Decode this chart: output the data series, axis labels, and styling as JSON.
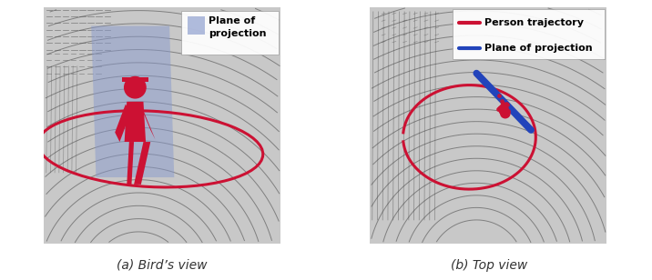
{
  "fig_width": 7.16,
  "fig_height": 3.08,
  "dpi": 100,
  "bg_color": "#c8c8c8",
  "caption_text": "(a) Bird’s view",
  "caption_text_b": "(b) Top view",
  "caption_fontsize": 10,
  "legend_b1_text": "Person trajectory",
  "legend_b2_text": "Plane of projection",
  "red_color": "#cc1133",
  "blue_color": "#2244bb",
  "plane_fill": "#8899cc",
  "plane_alpha": 0.5,
  "line_color": "#444444",
  "line_alpha": 0.55,
  "line_width": 0.7
}
